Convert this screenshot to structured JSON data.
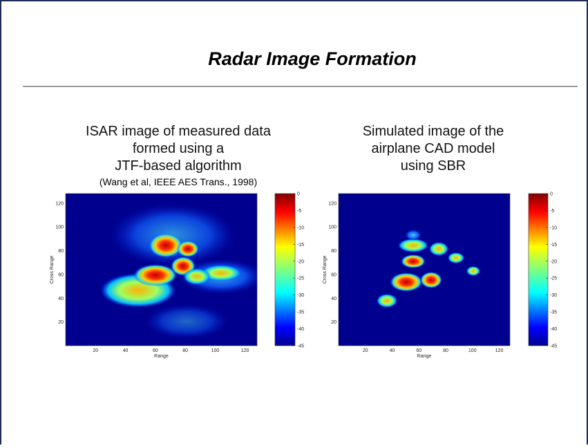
{
  "title": "Radar Image Formation",
  "panels": [
    {
      "caption": [
        "ISAR image of measured data",
        "formed using a",
        "JTF-based algorithm"
      ],
      "note": "(Wang et al, IEEE AES Trans., 1998)",
      "image": {
        "xlabel": "Range",
        "ylabel": "Cross Range",
        "xlim": [
          0,
          128
        ],
        "ylim": [
          0,
          128
        ],
        "xticks": [
          20,
          40,
          60,
          80,
          100,
          120
        ],
        "yticks": [
          20,
          40,
          60,
          80,
          100,
          120
        ],
        "colorbar": {
          "lim": [
            -45,
            0
          ],
          "ticks": [
            0,
            -5,
            -10,
            -15,
            -20,
            -25,
            -30,
            -35,
            -40,
            -45
          ]
        }
      }
    },
    {
      "caption": [
        "Simulated image of the",
        "airplane CAD model",
        "using SBR"
      ],
      "image": {
        "xlabel": "Range",
        "ylabel": "Cross Range",
        "xlim": [
          0,
          128
        ],
        "ylim": [
          0,
          128
        ],
        "xticks": [
          20,
          40,
          60,
          80,
          100,
          120
        ],
        "yticks": [
          20,
          40,
          60,
          80,
          100,
          120
        ],
        "colorbar": {
          "lim": [
            -45,
            0
          ],
          "ticks": [
            0,
            -5,
            -10,
            -15,
            -20,
            -25,
            -30,
            -35,
            -40,
            -45
          ]
        }
      }
    }
  ]
}
